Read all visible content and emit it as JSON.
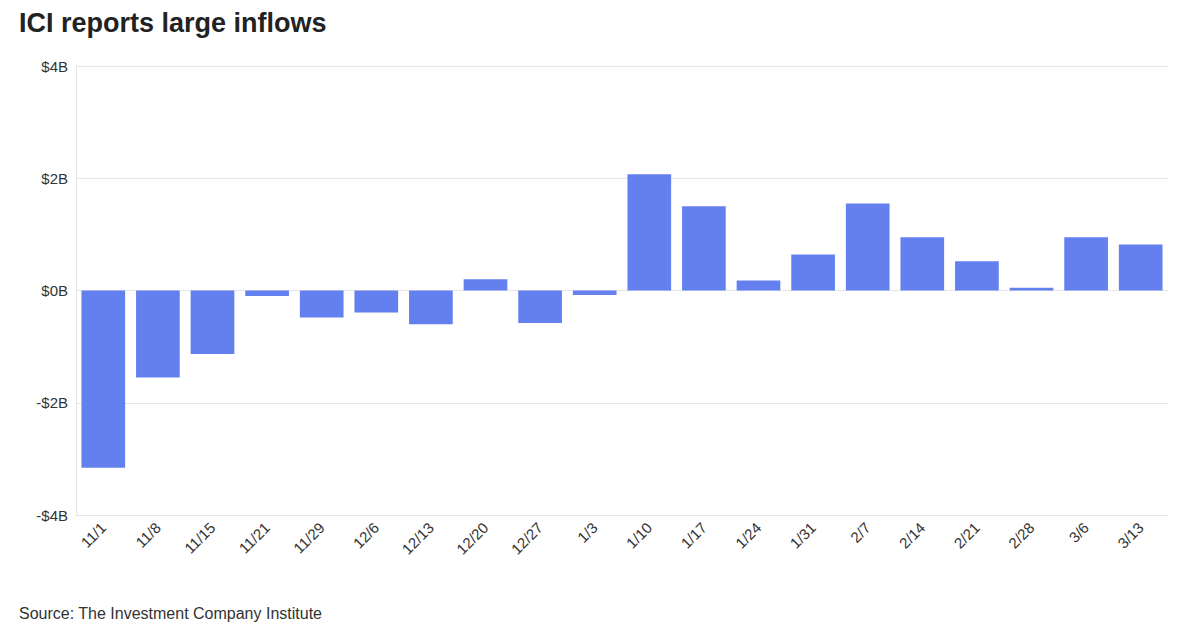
{
  "chart_data": {
    "type": "bar",
    "title": "ICI reports large inflows",
    "source": "Source: The Investment Company Institute",
    "categories": [
      "11/1",
      "11/8",
      "11/15",
      "11/21",
      "11/29",
      "12/6",
      "12/13",
      "12/20",
      "12/27",
      "1/3",
      "1/10",
      "1/17",
      "1/24",
      "1/31",
      "2/7",
      "2/14",
      "2/21",
      "2/28",
      "3/6",
      "3/13"
    ],
    "values": [
      -3.16,
      -1.55,
      -1.13,
      -0.1,
      -0.48,
      -0.39,
      -0.6,
      0.2,
      -0.58,
      -0.08,
      2.07,
      1.5,
      0.18,
      0.64,
      1.55,
      0.95,
      0.52,
      0.05,
      0.95,
      0.82
    ],
    "color": "#6480ef",
    "ylim": [
      -4,
      4
    ],
    "yticks": [
      {
        "value": -4,
        "label": "-$4B"
      },
      {
        "value": -2,
        "label": "-$2B"
      },
      {
        "value": 0,
        "label": "$0B"
      },
      {
        "value": 2,
        "label": "$2B"
      },
      {
        "value": 4,
        "label": "$4B"
      }
    ],
    "grid": true
  }
}
